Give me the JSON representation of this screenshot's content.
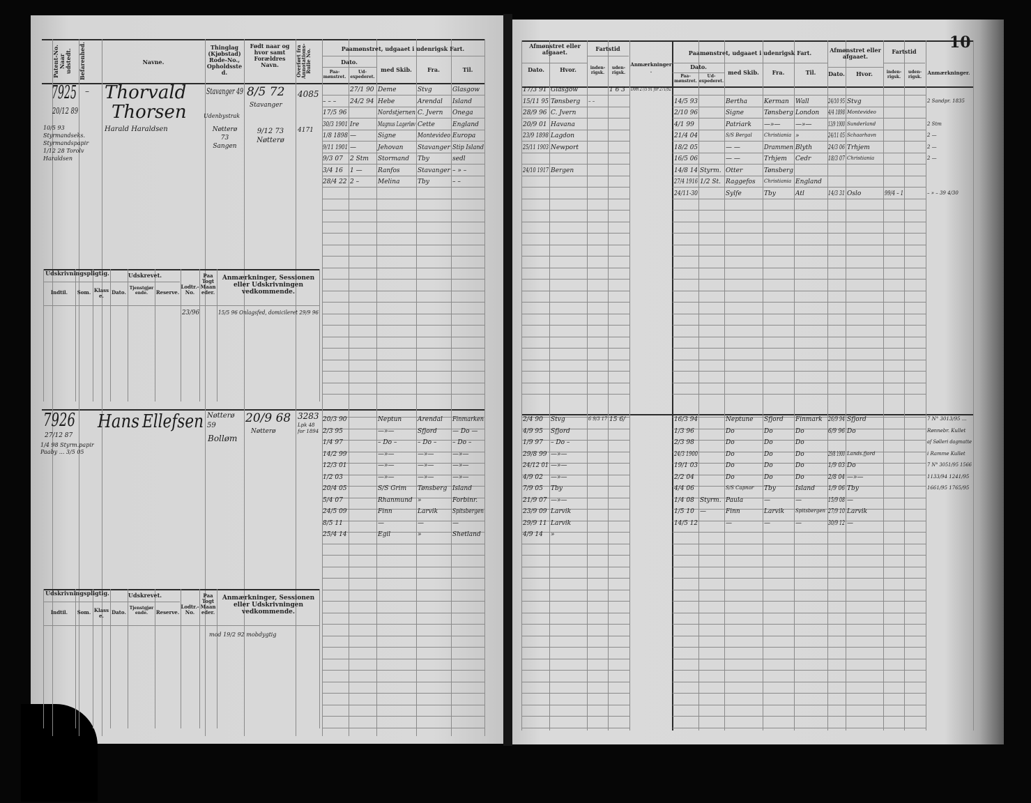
{
  "page_number": "10",
  "headers": {
    "patent": "Patent-No. Naar udstedt.",
    "befarenhed": "Befarenhed.",
    "navne": "Navne.",
    "thinglag": "Thinglag (Kjøbstad) Rode-No., Opholdssted.",
    "fodt": "Født naar og hvor samt Forældres Navn.",
    "overfort": "Overført fra Annotations-Rulle No.",
    "paamonstret": "Paamønstret, udgaaet i udenrigsk Fart.",
    "dato": "Dato.",
    "paa": "Paa-mønstret.",
    "ud": "Ud-expederet.",
    "skib": "med Skib.",
    "fra": "Fra.",
    "til": "Til.",
    "afmonstret": "Afmønstret eller afgaaet.",
    "hvor": "Hvor.",
    "fartstid": "Fartstid",
    "inden": "inden-rigsk.",
    "uden": "uden-rigsk.",
    "anm": "Anmærkninger."
  },
  "udskrivning_headers": {
    "pligtig": "Udskrivningspligtig.",
    "udskrevet": "Udskrevet.",
    "indtil": "Indtil.",
    "som": "Som.",
    "klasse": "Klasse.",
    "dato": "Dato.",
    "tjenst": "Tjenstgjørende.",
    "reserve": "Reserve.",
    "lodtr": "Lodtr.-No.",
    "togt": "Paa Togt Maaneder.",
    "anm": "Anmærkninger, Sessionen eller Udskrivningen vedkommende."
  },
  "records": [
    {
      "number": "7925",
      "issued": "20/12 89",
      "befarenhed": "–",
      "first_name": "Thorvald",
      "last_name": "Thorsen",
      "thinglag": "Stavanger 49",
      "opholdssted": "Udenbystrak",
      "born": "8/5 72",
      "born_place": "Stavanger",
      "annotation_no": "4085",
      "extra_note": "10/5 93 Styrmandseks. Styrmandspapir 1/12 28 Torolv Haraldsen",
      "extra_name": "Harald Haraldsen",
      "extra_thinglag": "Nøtterø 73 Sangen",
      "extra_born": "9/12 73 Nøtterø",
      "extra_annotation": "4171",
      "lodtr": "23/96",
      "udskrivning_note": "15/5 96 Onlagsfed, domicileret 29/9 96",
      "voyages": [
        {
          "paa": "",
          "ud": "27/1 90",
          "skib": "Deme",
          "fra": "Stvg",
          "til": "Glasgow"
        },
        {
          "paa": "– – –",
          "ud": "24/2 94",
          "skib": "Hebe",
          "fra": "Arendal",
          "til": "Island"
        },
        {
          "paa": "17/5 96",
          "ud": "",
          "skib": "Nordstjernen",
          "fra": "C. Jvern",
          "til": "Onega"
        },
        {
          "paa": "30/3 1901",
          "ud": "Ire",
          "skib": "Magnus Lagerløv",
          "fra": "Cette",
          "til": "England"
        },
        {
          "paa": "1/8 1898",
          "ud": "—",
          "skib": "Signe",
          "fra": "Montevideo",
          "til": "Europa"
        },
        {
          "paa": "9/11 1901",
          "ud": "—",
          "skib": "Jehovan",
          "fra": "Stavanger",
          "til": "Stip Island"
        },
        {
          "paa": "9/3 07",
          "ud": "2 Stm",
          "skib": "Stormand",
          "fra": "Tby",
          "til": "sedl"
        },
        {
          "paa": "3/4 16",
          "ud": "1 —",
          "skib": "Ranfos",
          "fra": "Stavanger",
          "til": "– » –"
        },
        {
          "paa": "28/4 22",
          "ud": "2 –",
          "skib": "Melina",
          "fra": "Tby",
          "til": "– –"
        }
      ],
      "returns": [
        {
          "dato": "17/3 91",
          "hvor": "Glasgow",
          "inden": "",
          "uden": "1 6 3",
          "anm": "Dom 27/5 91 for 271/92"
        },
        {
          "dato": "15/11 95",
          "hvor": "Tønsberg",
          "inden": "– –",
          "uden": "",
          "anm": ""
        },
        {
          "dato": "28/9 96",
          "hvor": "C. Jvern",
          "inden": "",
          "uden": "",
          "anm": ""
        },
        {
          "dato": "20/9 01",
          "hvor": "Havana",
          "inden": "",
          "uden": "",
          "anm": ""
        },
        {
          "dato": "23/9 1898",
          "hvor": "Lagdon",
          "inden": "",
          "uden": "",
          "anm": ""
        },
        {
          "dato": "25/11 1903",
          "hvor": "Newport",
          "inden": "",
          "uden": "",
          "anm": ""
        },
        {
          "dato": "",
          "hvor": "",
          "inden": "",
          "uden": "",
          "anm": ""
        },
        {
          "dato": "24/10 1917",
          "hvor": "Bergen",
          "inden": "",
          "uden": "",
          "anm": ""
        }
      ],
      "voyages2": [
        {
          "paa": "",
          "ud": "",
          "skib": "",
          "fra": "",
          "til": "",
          "dato": "",
          "hvor": "",
          "inden": "",
          "uden": "",
          "anm": ""
        },
        {
          "paa": "14/5 93",
          "ud": "",
          "skib": "Bertha",
          "fra": "Kerman",
          "til": "Wall",
          "dato": "24/10 95",
          "hvor": "Stvg",
          "inden": "",
          "uden": "",
          "anm": "2 Sandpr. 1835"
        },
        {
          "paa": "2/10 96",
          "ud": "",
          "skib": "Signe",
          "fra": "Tønsberg",
          "til": "London",
          "dato": "4/4 1898",
          "hvor": "Montevideo",
          "inden": "",
          "uden": "",
          "anm": ""
        },
        {
          "paa": "4/1 99",
          "ud": "",
          "skib": "Patriark",
          "fra": "—»—",
          "til": "—»—",
          "dato": "13/9 1900",
          "hvor": "Sunderland",
          "inden": "",
          "uden": "",
          "anm": "2 Stm"
        },
        {
          "paa": "21/4 04",
          "ud": "",
          "skib": "S/S Bergal",
          "fra": "Christiania",
          "til": "»",
          "dato": "24/11 05",
          "hvor": "Schaarhavn",
          "inden": "",
          "uden": "",
          "anm": "2 —"
        },
        {
          "paa": "18/2 05",
          "ud": "",
          "skib": "— —",
          "fra": "Drammen",
          "til": "Blyth",
          "dato": "24/3 06",
          "hvor": "Trhjem",
          "inden": "",
          "uden": "",
          "anm": "2 —"
        },
        {
          "paa": "16/5 06",
          "ud": "",
          "skib": "— —",
          "fra": "Trhjem",
          "til": "Cedr",
          "dato": "18/3 07",
          "hvor": "Christiania",
          "inden": "",
          "uden": "",
          "anm": "2 —"
        },
        {
          "paa": "14/8 14",
          "ud": "Styrm.",
          "skib": "Otter",
          "fra": "Tønsberg",
          "til": "",
          "dato": "",
          "hvor": "",
          "inden": "",
          "uden": "",
          "anm": ""
        },
        {
          "paa": "27/4 1916",
          "ud": "1/2 St.",
          "skib": "Raggefos",
          "fra": "Christiania",
          "til": "England",
          "dato": "",
          "hvor": "",
          "inden": "",
          "uden": "",
          "anm": ""
        },
        {
          "paa": "24/11-30",
          "ud": "",
          "skib": "Sylfe",
          "fra": "Tby",
          "til": "Atl",
          "dato": "14/3 31",
          "hvor": "Oslo",
          "inden": "99/4 – 1",
          "uden": "",
          "anm": "– » – 39 4/30"
        }
      ]
    },
    {
      "number": "7926",
      "issued": "27/12 87",
      "befarenhed": "",
      "first_name": "Hans",
      "last_name": "Ellefsen",
      "thinglag": "Nøtterø 59",
      "opholdssted": "Bolløm",
      "born": "20/9 68",
      "born_place": "Nøtterø",
      "annotation_no": "3283",
      "annotation_extra": "Lpk 48 for 1894",
      "extra_note": "1/4 98 Styrm.papir Paaby ... 3/5 05",
      "udskrivning_note": "mod 19/2 92 mobdygtig",
      "voyages": [
        {
          "paa": "20/3 90",
          "ud": "",
          "skib": "Neptun",
          "fra": "Arendal",
          "til": "Finmarken"
        },
        {
          "paa": "2/3 95",
          "ud": "",
          "skib": "—»—",
          "fra": "Sfjord",
          "til": "— Do —"
        },
        {
          "paa": "1/4 97",
          "ud": "",
          "skib": "– Do –",
          "fra": "– Do –",
          "til": "– Do –"
        },
        {
          "paa": "14/2 99",
          "ud": "",
          "skib": "—»—",
          "fra": "—»—",
          "til": "—»—"
        },
        {
          "paa": "12/3 01",
          "ud": "",
          "skib": "—»—",
          "fra": "—»—",
          "til": "—»—"
        },
        {
          "paa": "1/2 03",
          "ud": "",
          "skib": "—»—",
          "fra": "—»—",
          "til": "—»—"
        },
        {
          "paa": "20/4 05",
          "ud": "",
          "skib": "S/S Grim",
          "fra": "Tønsberg",
          "til": "Island"
        },
        {
          "paa": "5/4 07",
          "ud": "",
          "skib": "Rhanmund",
          "fra": "»",
          "til": "Forbinr."
        },
        {
          "paa": "24/5 09",
          "ud": "",
          "skib": "Finn",
          "fra": "Larvik",
          "til": "Spitsbergen"
        },
        {
          "paa": "8/5 11",
          "ud": "",
          "skib": "—",
          "fra": "—",
          "til": "—"
        },
        {
          "paa": "25/4 14",
          "ud": "",
          "skib": "Egil",
          "fra": "»",
          "til": "Shetland"
        }
      ],
      "returns": [
        {
          "dato": "2/4 90",
          "hvor": "Stvg",
          "inden": "6 9/3 17",
          "uden": "15 6/",
          "anm": ""
        },
        {
          "dato": "4/9 95",
          "hvor": "Sfjord",
          "inden": "",
          "uden": "",
          "anm": ""
        },
        {
          "dato": "1/9 97",
          "hvor": "– Do –",
          "inden": "",
          "uden": "",
          "anm": ""
        },
        {
          "dato": "29/8 99",
          "hvor": "—»—",
          "inden": "",
          "uden": "",
          "anm": ""
        },
        {
          "dato": "24/12 01",
          "hvor": "—»—",
          "inden": "",
          "uden": "",
          "anm": ""
        },
        {
          "dato": "4/9 02",
          "hvor": "—»—",
          "inden": "",
          "uden": "",
          "anm": ""
        },
        {
          "dato": "7/9 05",
          "hvor": "Tby",
          "inden": "",
          "uden": "",
          "anm": ""
        },
        {
          "dato": "21/9 07",
          "hvor": "—»—",
          "inden": "",
          "uden": "",
          "anm": ""
        },
        {
          "dato": "23/9 09",
          "hvor": "Larvik",
          "inden": "",
          "uden": "",
          "anm": ""
        },
        {
          "dato": "29/9 11",
          "hvor": "Larvik",
          "inden": "",
          "uden": "",
          "anm": ""
        },
        {
          "dato": "4/9 14",
          "hvor": "»",
          "inden": "",
          "uden": "",
          "anm": ""
        }
      ],
      "voyages2": [
        {
          "paa": "16/3 94",
          "ud": "",
          "skib": "Neptune",
          "fra": "Sfjord",
          "til": "Finmark",
          "dato": "26/9 94",
          "hvor": "Sfjord",
          "inden": "",
          "uden": "",
          "anm": "7 N° 3013/95 ..."
        },
        {
          "paa": "1/3 96",
          "ud": "",
          "skib": "Do",
          "fra": "Do",
          "til": "Do",
          "dato": "6/9 96",
          "hvor": "Do",
          "inden": "",
          "uden": "",
          "anm": "Rønnebr. Kullet"
        },
        {
          "paa": "2/3 98",
          "ud": "",
          "skib": "Do",
          "fra": "Do",
          "til": "Do",
          "dato": "",
          "hvor": "",
          "inden": "",
          "uden": "",
          "anm": "af Sølleri dagmatte"
        },
        {
          "paa": "24/3 1900",
          "ud": "",
          "skib": "Do",
          "fra": "Do",
          "til": "Do",
          "dato": "29/8 1900",
          "hvor": "Lands.fjord",
          "inden": "",
          "uden": "",
          "anm": "i Ramme Kullet"
        },
        {
          "paa": "19/1 03",
          "ud": "",
          "skib": "Do",
          "fra": "Do",
          "til": "Do",
          "dato": "1/9 03",
          "hvor": "Do",
          "inden": "",
          "uden": "",
          "anm": "7 N° 3051/95 1566"
        },
        {
          "paa": "2/2 04",
          "ud": "",
          "skib": "Do",
          "fra": "Do",
          "til": "Do",
          "dato": "2/8 04",
          "hvor": "—»—",
          "inden": "",
          "uden": "",
          "anm": "1133/94 1241/95"
        },
        {
          "paa": "4/4 06",
          "ud": "",
          "skib": "S/S Capnor",
          "fra": "Tby",
          "til": "Island",
          "dato": "1/9 06",
          "hvor": "Tby",
          "inden": "",
          "uden": "",
          "anm": "1661/95 1765/95"
        },
        {
          "paa": "1/4 08",
          "ud": "Styrm.",
          "skib": "Paula",
          "fra": "—",
          "til": "—",
          "dato": "15/9 08",
          "hvor": "—",
          "inden": "",
          "uden": "",
          "anm": ""
        },
        {
          "paa": "1/5 10",
          "ud": "—",
          "skib": "Finn",
          "fra": "Larvik",
          "til": "Spitsbergen",
          "dato": "27/9 10",
          "hvor": "Larvik",
          "inden": "",
          "uden": "",
          "anm": ""
        },
        {
          "paa": "14/5 12",
          "ud": "",
          "skib": "—",
          "fra": "—",
          "til": "—",
          "dato": "30/9 12",
          "hvor": "—",
          "inden": "",
          "uden": "",
          "anm": ""
        }
      ]
    }
  ]
}
